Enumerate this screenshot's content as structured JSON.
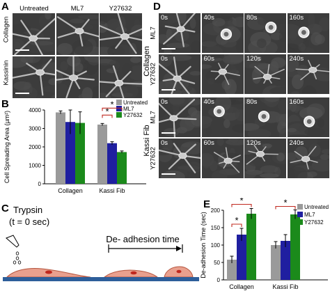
{
  "figure": {
    "panel_a": {
      "label": "A",
      "columns": [
        "Untreated",
        "ML7",
        "Y27632"
      ],
      "rows": [
        "Collagen",
        "Kassinin"
      ]
    },
    "panel_b": {
      "label": "B",
      "ylabel": "Cell Spreading Area (µm²)",
      "legend": [
        "Untreated",
        "ML7",
        "Y27632"
      ],
      "significance": [
        "*",
        "*"
      ]
    },
    "panel_c": {
      "label": "C",
      "trypsin": "Trypsin",
      "time_zero": "(t = 0 sec)",
      "deadhesion": "De- adhesion time"
    },
    "panel_d": {
      "label": "D",
      "group_collagen": "Collagen",
      "group_kassi": "Kassi Fib",
      "rows": [
        {
          "label": "ML7",
          "times": [
            "0s",
            "40s",
            "80s",
            "160s"
          ]
        },
        {
          "label": "Y27632",
          "times": [
            "0s",
            "60s",
            "120s",
            "240s"
          ]
        },
        {
          "label": "ML7",
          "times": [
            "0s",
            "40s",
            "80s",
            "160s"
          ]
        },
        {
          "label": "Y27632",
          "times": [
            "0s",
            "60s",
            "120s",
            "240s"
          ]
        }
      ]
    },
    "panel_e": {
      "label": "E",
      "ylabel": "De-adhesion Time (sec)",
      "legend": [
        "Untreated",
        "ML7",
        "Y27632"
      ],
      "significance": [
        "*",
        "*",
        "*"
      ]
    }
  },
  "colors": {
    "untreated": "#9a9a9a",
    "ml7": "#1f1fa0",
    "y27632": "#1b8a1b",
    "sig": "#c0281e",
    "substrate": "#2d5e9a",
    "cell": "#e9a08e"
  },
  "chart_data": [
    {
      "type": "bar",
      "panel": "B",
      "categories": [
        "Collagen",
        "Kassi Fib"
      ],
      "series": [
        {
          "name": "Untreated",
          "values": [
            3870,
            3210
          ],
          "errors": [
            80,
            60
          ]
        },
        {
          "name": "ML7",
          "values": [
            3350,
            2200
          ],
          "errors": [
            650,
            80
          ]
        },
        {
          "name": "Y27632",
          "values": [
            3300,
            1720
          ],
          "errors": [
            600,
            60
          ]
        }
      ],
      "ylabel": "Cell Spreading Area (µm²)",
      "ylim": [
        0,
        4000
      ],
      "yticks": [
        0,
        1000,
        2000,
        3000,
        4000
      ],
      "legend": "top-right"
    },
    {
      "type": "bar",
      "panel": "E",
      "categories": [
        "Collagen",
        "Kassi Fib"
      ],
      "series": [
        {
          "name": "Untreated",
          "values": [
            58,
            100
          ],
          "errors": [
            10,
            10
          ]
        },
        {
          "name": "ML7",
          "values": [
            130,
            112
          ],
          "errors": [
            18,
            18
          ]
        },
        {
          "name": "Y27632",
          "values": [
            190,
            188
          ],
          "errors": [
            15,
            13
          ]
        }
      ],
      "ylabel": "De-adhesion Time (sec)",
      "ylim": [
        0,
        200
      ],
      "yticks": [
        0,
        50,
        100,
        150,
        200
      ],
      "legend": "top-right"
    }
  ]
}
